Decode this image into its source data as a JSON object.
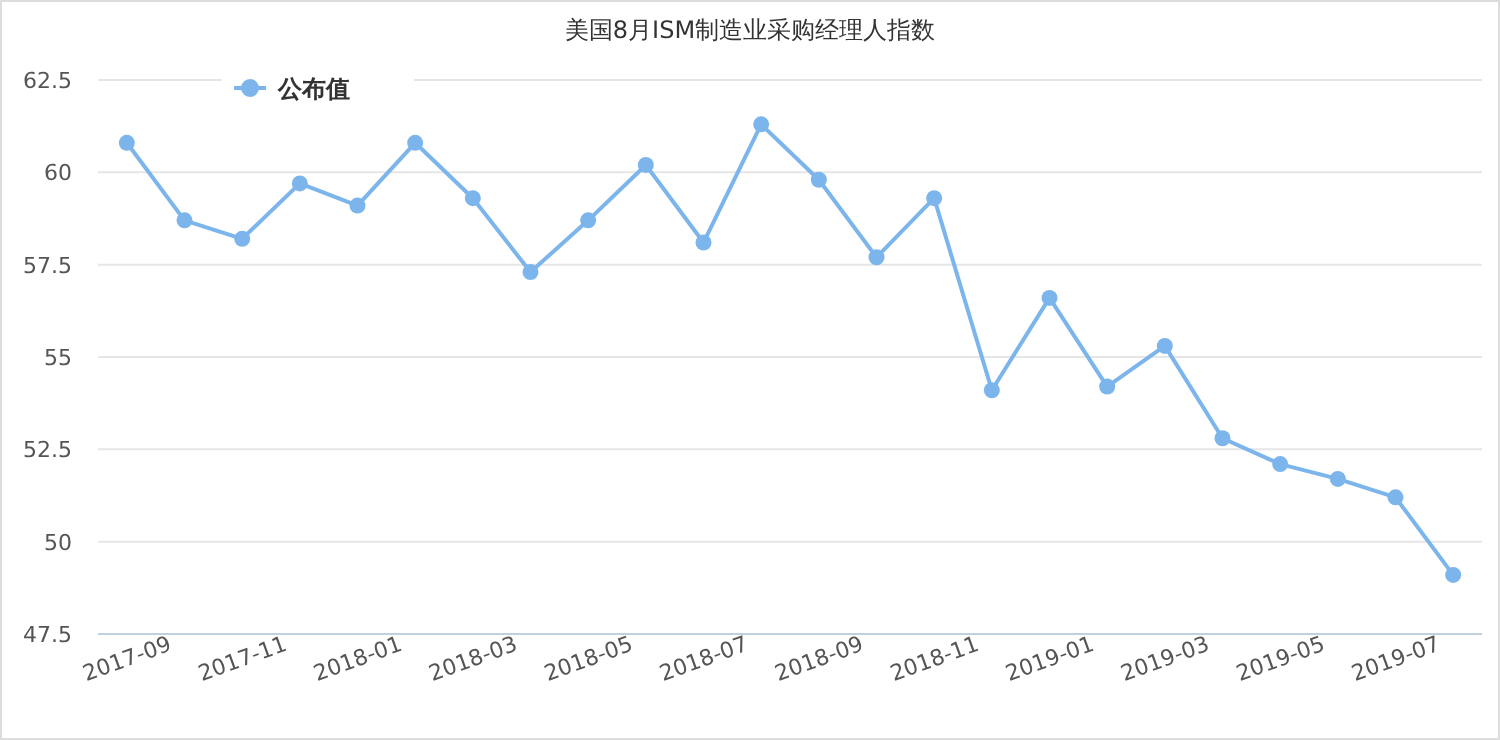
{
  "chart_data": {
    "type": "line",
    "title": "美国8月ISM制造业采购经理人指数",
    "categories": [
      "2017-09",
      null,
      "2017-11",
      null,
      "2018-01",
      null,
      "2018-03",
      null,
      "2018-05",
      null,
      "2018-07",
      null,
      "2018-09",
      null,
      "2018-11",
      null,
      "2019-01",
      null,
      "2019-03",
      null,
      "2019-05",
      null,
      "2019-07",
      null
    ],
    "series": [
      {
        "name": "公布值",
        "color": "#7cb5ec",
        "values": [
          60.8,
          58.7,
          58.2,
          59.7,
          59.1,
          60.8,
          59.3,
          57.3,
          58.7,
          60.2,
          58.1,
          61.3,
          59.8,
          57.7,
          59.3,
          54.1,
          56.6,
          54.2,
          55.3,
          52.8,
          52.1,
          51.7,
          51.2,
          49.1
        ]
      }
    ],
    "ylim": [
      47.5,
      62.5
    ],
    "yticks": [
      {
        "value": 47.5,
        "label": "47.5"
      },
      50,
      {
        "value": 52.5,
        "label": "52.5"
      },
      55,
      {
        "value": 57.5,
        "label": "57.5"
      },
      60,
      {
        "value": 62.5,
        "label": "62.5"
      }
    ],
    "grid": "y",
    "legend": "top left",
    "marker": "circle",
    "line_style": "solid"
  }
}
